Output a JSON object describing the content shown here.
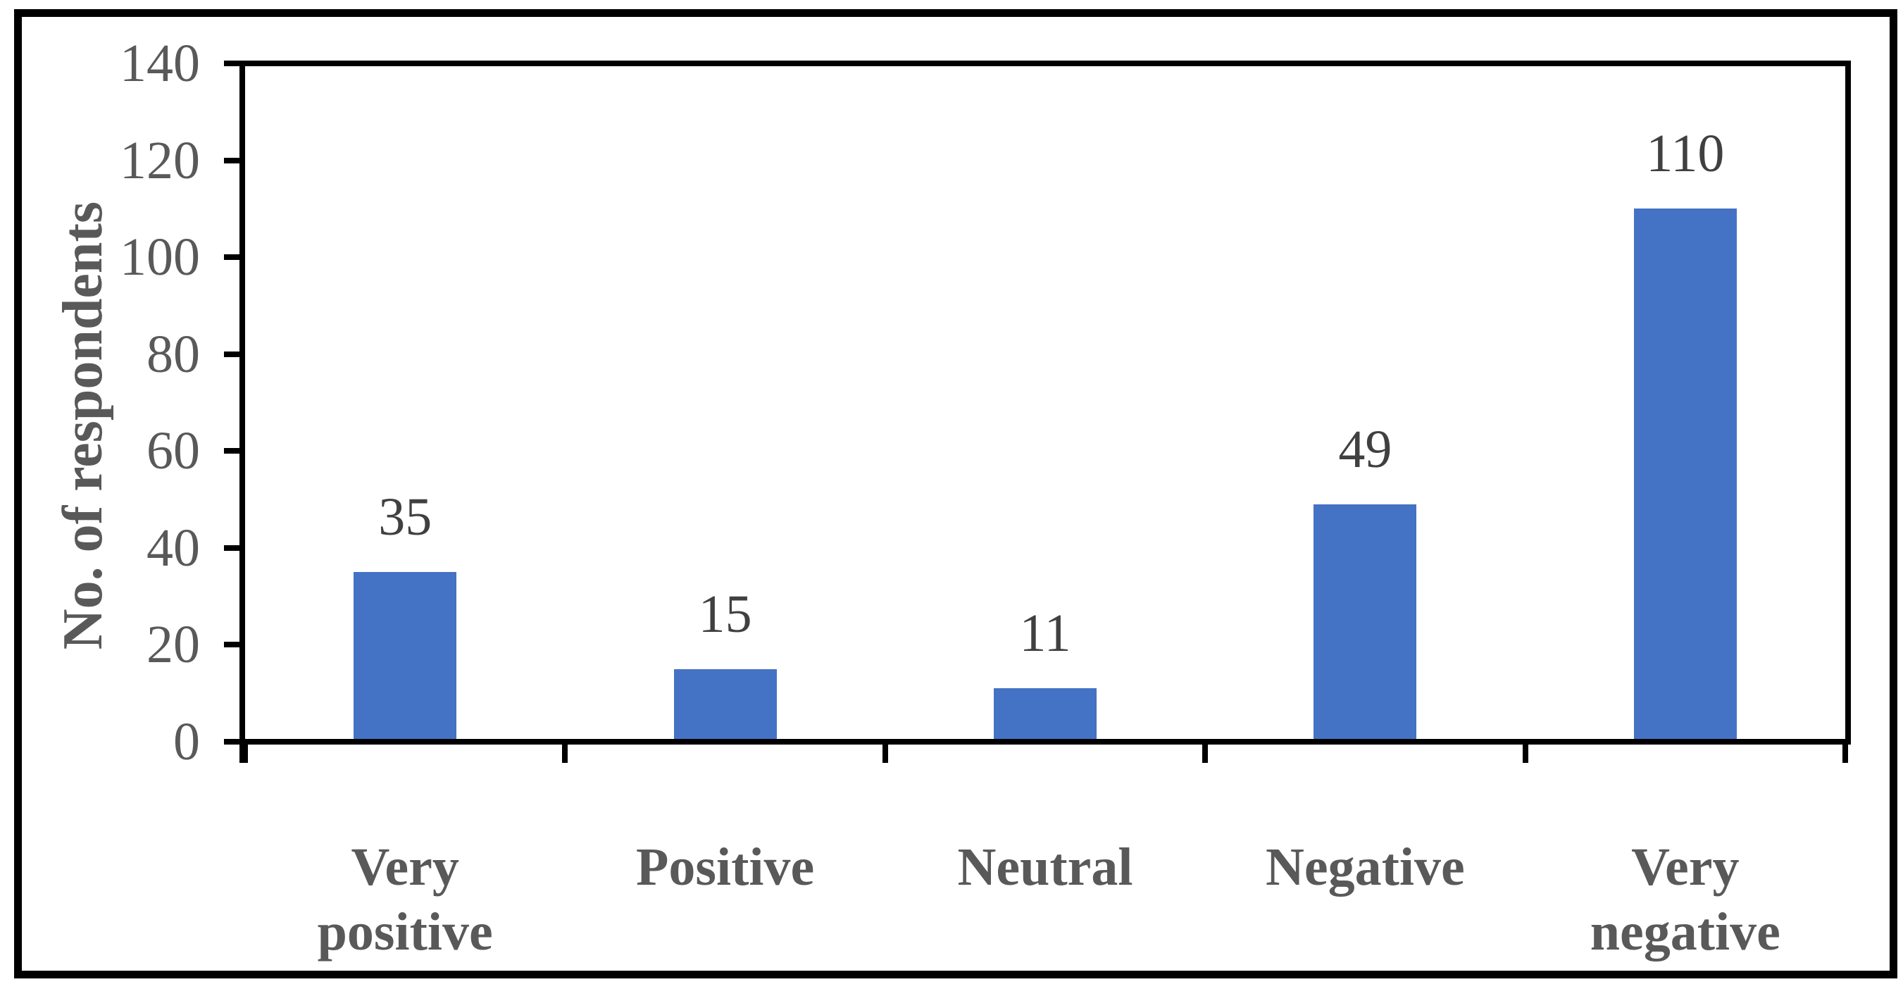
{
  "figure": {
    "background_color": "#ffffff",
    "border_color": "#000000"
  },
  "chart_data": {
    "type": "bar",
    "title": "",
    "xlabel": "",
    "ylabel": "No. of respondents",
    "categories": [
      "Very positive",
      "Positive",
      "Neutral",
      "Negative",
      "Very negative"
    ],
    "values": [
      35,
      15,
      11,
      49,
      110
    ],
    "data_labels": [
      "35",
      "15",
      "11",
      "49",
      "110"
    ],
    "ylim": [
      0,
      140
    ],
    "yticks": [
      0,
      20,
      40,
      60,
      80,
      100,
      120,
      140
    ],
    "grid": "off",
    "legend": "none",
    "bar_color": "#4472C4",
    "axis_color": "#000000",
    "tick_label_color": "#595959",
    "data_label_color": "#404040",
    "category_label_color": "#595959"
  }
}
